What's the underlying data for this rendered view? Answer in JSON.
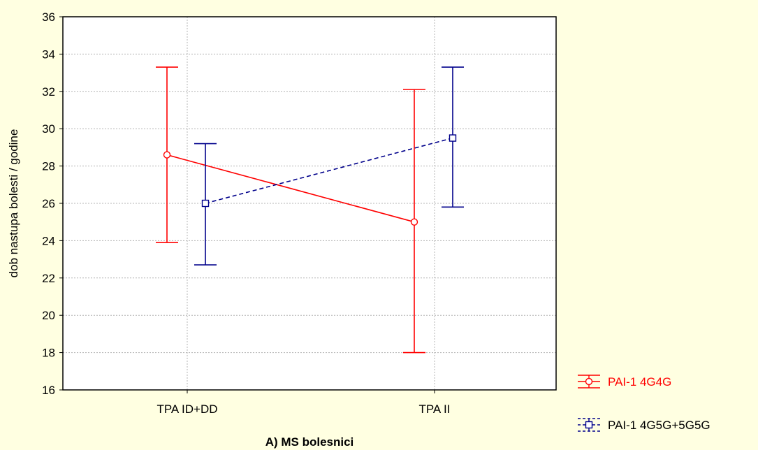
{
  "chart_data": {
    "type": "line",
    "title": "",
    "xlabel": "A) MS bolesnici",
    "ylabel": "dob nastupa bolesti / godine",
    "categories": [
      "TPA ID+DD",
      "TPA II"
    ],
    "category_colors": [
      "#000000",
      "#ff0000"
    ],
    "ylim": [
      16,
      36
    ],
    "yticks": [
      16,
      18,
      20,
      22,
      24,
      26,
      28,
      30,
      32,
      34,
      36
    ],
    "grid": true,
    "legend_position": "bottom-right, outside plot",
    "series": [
      {
        "name": "PAI-1 4G4G",
        "color": "#ff0000",
        "line_style": "solid",
        "marker": "circle",
        "values": [
          28.6,
          25.0
        ],
        "lower": [
          23.9,
          18.0
        ],
        "upper": [
          33.3,
          32.1
        ]
      },
      {
        "name": "PAI-1 4G5G+5G5G",
        "color": "#00008b",
        "line_style": "dashed",
        "marker": "square",
        "values": [
          26.0,
          29.5
        ],
        "lower": [
          22.7,
          25.8
        ],
        "upper": [
          29.2,
          33.3
        ]
      }
    ]
  },
  "colors": {
    "background": "#ffffe1",
    "plot_background": "#ffffff",
    "grid": "#b4b4b4"
  }
}
